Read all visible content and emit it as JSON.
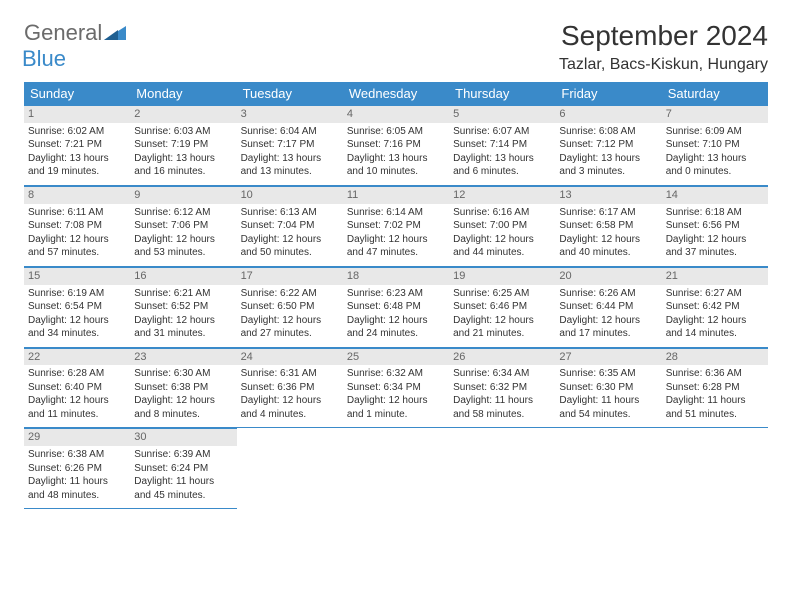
{
  "logo": {
    "general": "General",
    "blue": "Blue"
  },
  "title": "September 2024",
  "location": "Tazlar, Bacs-Kiskun, Hungary",
  "colors": {
    "header_bg": "#3a8ac9",
    "header_text": "#ffffff",
    "daynum_bg": "#e8e8e8",
    "daynum_text": "#666666",
    "cell_text": "#333333",
    "rule": "#3a8ac9"
  },
  "weekdays": [
    "Sunday",
    "Monday",
    "Tuesday",
    "Wednesday",
    "Thursday",
    "Friday",
    "Saturday"
  ],
  "days": [
    {
      "n": "1",
      "sunrise": "6:02 AM",
      "sunset": "7:21 PM",
      "daylight": "13 hours and 19 minutes."
    },
    {
      "n": "2",
      "sunrise": "6:03 AM",
      "sunset": "7:19 PM",
      "daylight": "13 hours and 16 minutes."
    },
    {
      "n": "3",
      "sunrise": "6:04 AM",
      "sunset": "7:17 PM",
      "daylight": "13 hours and 13 minutes."
    },
    {
      "n": "4",
      "sunrise": "6:05 AM",
      "sunset": "7:16 PM",
      "daylight": "13 hours and 10 minutes."
    },
    {
      "n": "5",
      "sunrise": "6:07 AM",
      "sunset": "7:14 PM",
      "daylight": "13 hours and 6 minutes."
    },
    {
      "n": "6",
      "sunrise": "6:08 AM",
      "sunset": "7:12 PM",
      "daylight": "13 hours and 3 minutes."
    },
    {
      "n": "7",
      "sunrise": "6:09 AM",
      "sunset": "7:10 PM",
      "daylight": "13 hours and 0 minutes."
    },
    {
      "n": "8",
      "sunrise": "6:11 AM",
      "sunset": "7:08 PM",
      "daylight": "12 hours and 57 minutes."
    },
    {
      "n": "9",
      "sunrise": "6:12 AM",
      "sunset": "7:06 PM",
      "daylight": "12 hours and 53 minutes."
    },
    {
      "n": "10",
      "sunrise": "6:13 AM",
      "sunset": "7:04 PM",
      "daylight": "12 hours and 50 minutes."
    },
    {
      "n": "11",
      "sunrise": "6:14 AM",
      "sunset": "7:02 PM",
      "daylight": "12 hours and 47 minutes."
    },
    {
      "n": "12",
      "sunrise": "6:16 AM",
      "sunset": "7:00 PM",
      "daylight": "12 hours and 44 minutes."
    },
    {
      "n": "13",
      "sunrise": "6:17 AM",
      "sunset": "6:58 PM",
      "daylight": "12 hours and 40 minutes."
    },
    {
      "n": "14",
      "sunrise": "6:18 AM",
      "sunset": "6:56 PM",
      "daylight": "12 hours and 37 minutes."
    },
    {
      "n": "15",
      "sunrise": "6:19 AM",
      "sunset": "6:54 PM",
      "daylight": "12 hours and 34 minutes."
    },
    {
      "n": "16",
      "sunrise": "6:21 AM",
      "sunset": "6:52 PM",
      "daylight": "12 hours and 31 minutes."
    },
    {
      "n": "17",
      "sunrise": "6:22 AM",
      "sunset": "6:50 PM",
      "daylight": "12 hours and 27 minutes."
    },
    {
      "n": "18",
      "sunrise": "6:23 AM",
      "sunset": "6:48 PM",
      "daylight": "12 hours and 24 minutes."
    },
    {
      "n": "19",
      "sunrise": "6:25 AM",
      "sunset": "6:46 PM",
      "daylight": "12 hours and 21 minutes."
    },
    {
      "n": "20",
      "sunrise": "6:26 AM",
      "sunset": "6:44 PM",
      "daylight": "12 hours and 17 minutes."
    },
    {
      "n": "21",
      "sunrise": "6:27 AM",
      "sunset": "6:42 PM",
      "daylight": "12 hours and 14 minutes."
    },
    {
      "n": "22",
      "sunrise": "6:28 AM",
      "sunset": "6:40 PM",
      "daylight": "12 hours and 11 minutes."
    },
    {
      "n": "23",
      "sunrise": "6:30 AM",
      "sunset": "6:38 PM",
      "daylight": "12 hours and 8 minutes."
    },
    {
      "n": "24",
      "sunrise": "6:31 AM",
      "sunset": "6:36 PM",
      "daylight": "12 hours and 4 minutes."
    },
    {
      "n": "25",
      "sunrise": "6:32 AM",
      "sunset": "6:34 PM",
      "daylight": "12 hours and 1 minute."
    },
    {
      "n": "26",
      "sunrise": "6:34 AM",
      "sunset": "6:32 PM",
      "daylight": "11 hours and 58 minutes."
    },
    {
      "n": "27",
      "sunrise": "6:35 AM",
      "sunset": "6:30 PM",
      "daylight": "11 hours and 54 minutes."
    },
    {
      "n": "28",
      "sunrise": "6:36 AM",
      "sunset": "6:28 PM",
      "daylight": "11 hours and 51 minutes."
    },
    {
      "n": "29",
      "sunrise": "6:38 AM",
      "sunset": "6:26 PM",
      "daylight": "11 hours and 48 minutes."
    },
    {
      "n": "30",
      "sunrise": "6:39 AM",
      "sunset": "6:24 PM",
      "daylight": "11 hours and 45 minutes."
    }
  ],
  "labels": {
    "sunrise": "Sunrise: ",
    "sunset": "Sunset: ",
    "daylight": "Daylight: "
  }
}
